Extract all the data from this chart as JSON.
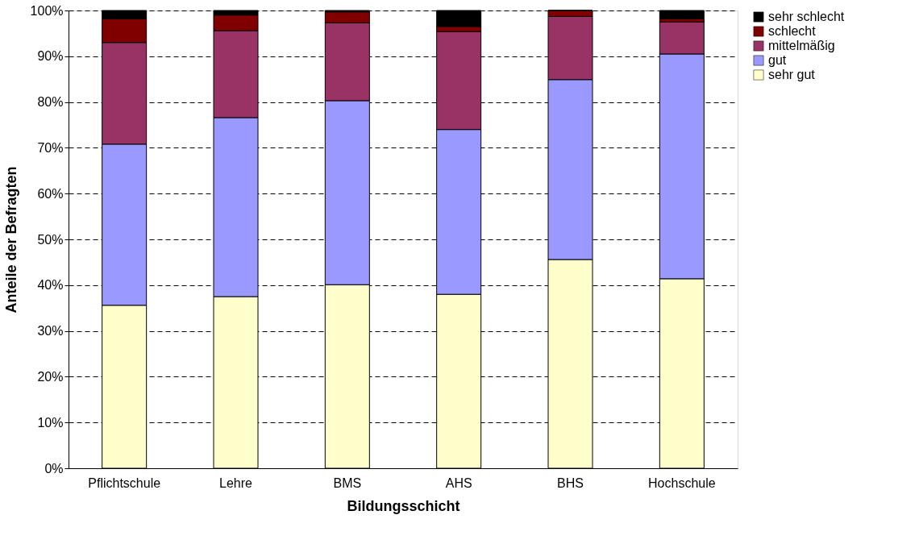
{
  "chart_data": {
    "type": "bar",
    "stacked": true,
    "xlabel": "Bildungsschicht",
    "ylabel": "Anteile der Befragten",
    "categories": [
      "Pflichtschule",
      "Lehre",
      "BMS",
      "AHS",
      "BHS",
      "Hochschule"
    ],
    "series": [
      {
        "name": "sehr gut",
        "color": "#ffffcc",
        "values": [
          35.6,
          37.5,
          40.1,
          38.0,
          45.6,
          41.4
        ]
      },
      {
        "name": "gut",
        "color": "#9999ff",
        "values": [
          35.2,
          39.1,
          40.2,
          36.0,
          39.3,
          49.1
        ]
      },
      {
        "name": "mittelmäßig",
        "color": "#993366",
        "values": [
          22.2,
          19.0,
          17.0,
          21.4,
          13.8,
          7.0
        ]
      },
      {
        "name": "schlecht",
        "color": "#800000",
        "values": [
          5.2,
          3.4,
          2.4,
          1.1,
          1.3,
          0.7
        ]
      },
      {
        "name": "sehr schlecht",
        "color": "#000000",
        "values": [
          1.8,
          1.0,
          0.3,
          3.5,
          0,
          1.8
        ]
      }
    ],
    "ylim": [
      0,
      100
    ],
    "yticks": [
      {
        "value": 0,
        "label": "0%"
      },
      {
        "value": 10,
        "label": "10%"
      },
      {
        "value": 20,
        "label": "20%"
      },
      {
        "value": 30,
        "label": "30%"
      },
      {
        "value": 40,
        "label": "40%"
      },
      {
        "value": 50,
        "label": "50%"
      },
      {
        "value": 60,
        "label": "60%"
      },
      {
        "value": 70,
        "label": "70%"
      },
      {
        "value": 80,
        "label": "80%"
      },
      {
        "value": 90,
        "label": "90%"
      },
      {
        "value": 100,
        "label": "100%"
      }
    ],
    "grid": "y",
    "legend": "right"
  }
}
